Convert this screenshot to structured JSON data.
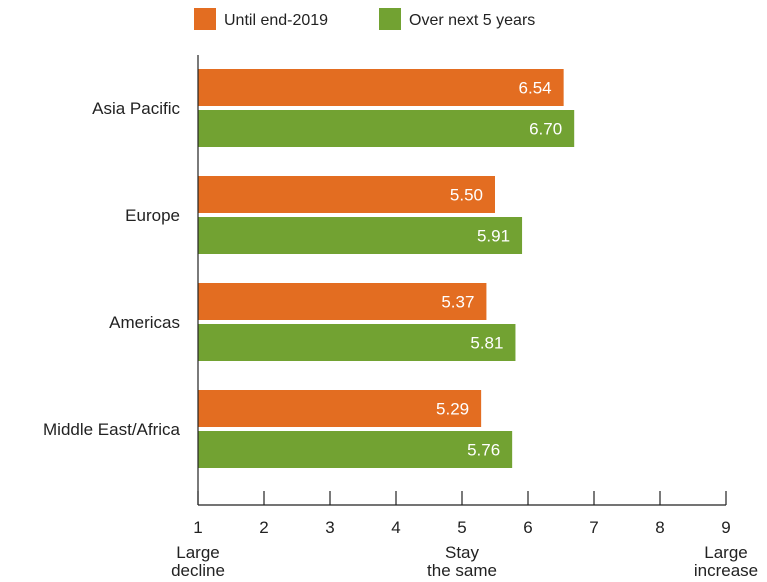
{
  "chart_data": {
    "type": "bar",
    "orientation": "horizontal",
    "title": "",
    "xlabel": "",
    "ylabel": "",
    "categories": [
      "Asia Pacific",
      "Europe",
      "Americas",
      "Middle East/Africa"
    ],
    "series": [
      {
        "name": "Until end-2019",
        "color": "#e36d21",
        "values": [
          6.54,
          5.5,
          5.37,
          5.29
        ]
      },
      {
        "name": "Over next 5 years",
        "color": "#72a232",
        "values": [
          6.7,
          5.91,
          5.81,
          5.76
        ]
      }
    ],
    "xlim": [
      1,
      9
    ],
    "xticks": [
      1,
      2,
      3,
      4,
      5,
      6,
      7,
      8,
      9
    ],
    "anchor_labels": [
      {
        "x": 1,
        "lines": [
          "Large",
          "decline"
        ]
      },
      {
        "x": 5,
        "lines": [
          "Stay",
          "the same"
        ]
      },
      {
        "x": 9,
        "lines": [
          "Large",
          "increase"
        ]
      }
    ],
    "data_labels": true,
    "legend_position": "top",
    "grid": false
  }
}
